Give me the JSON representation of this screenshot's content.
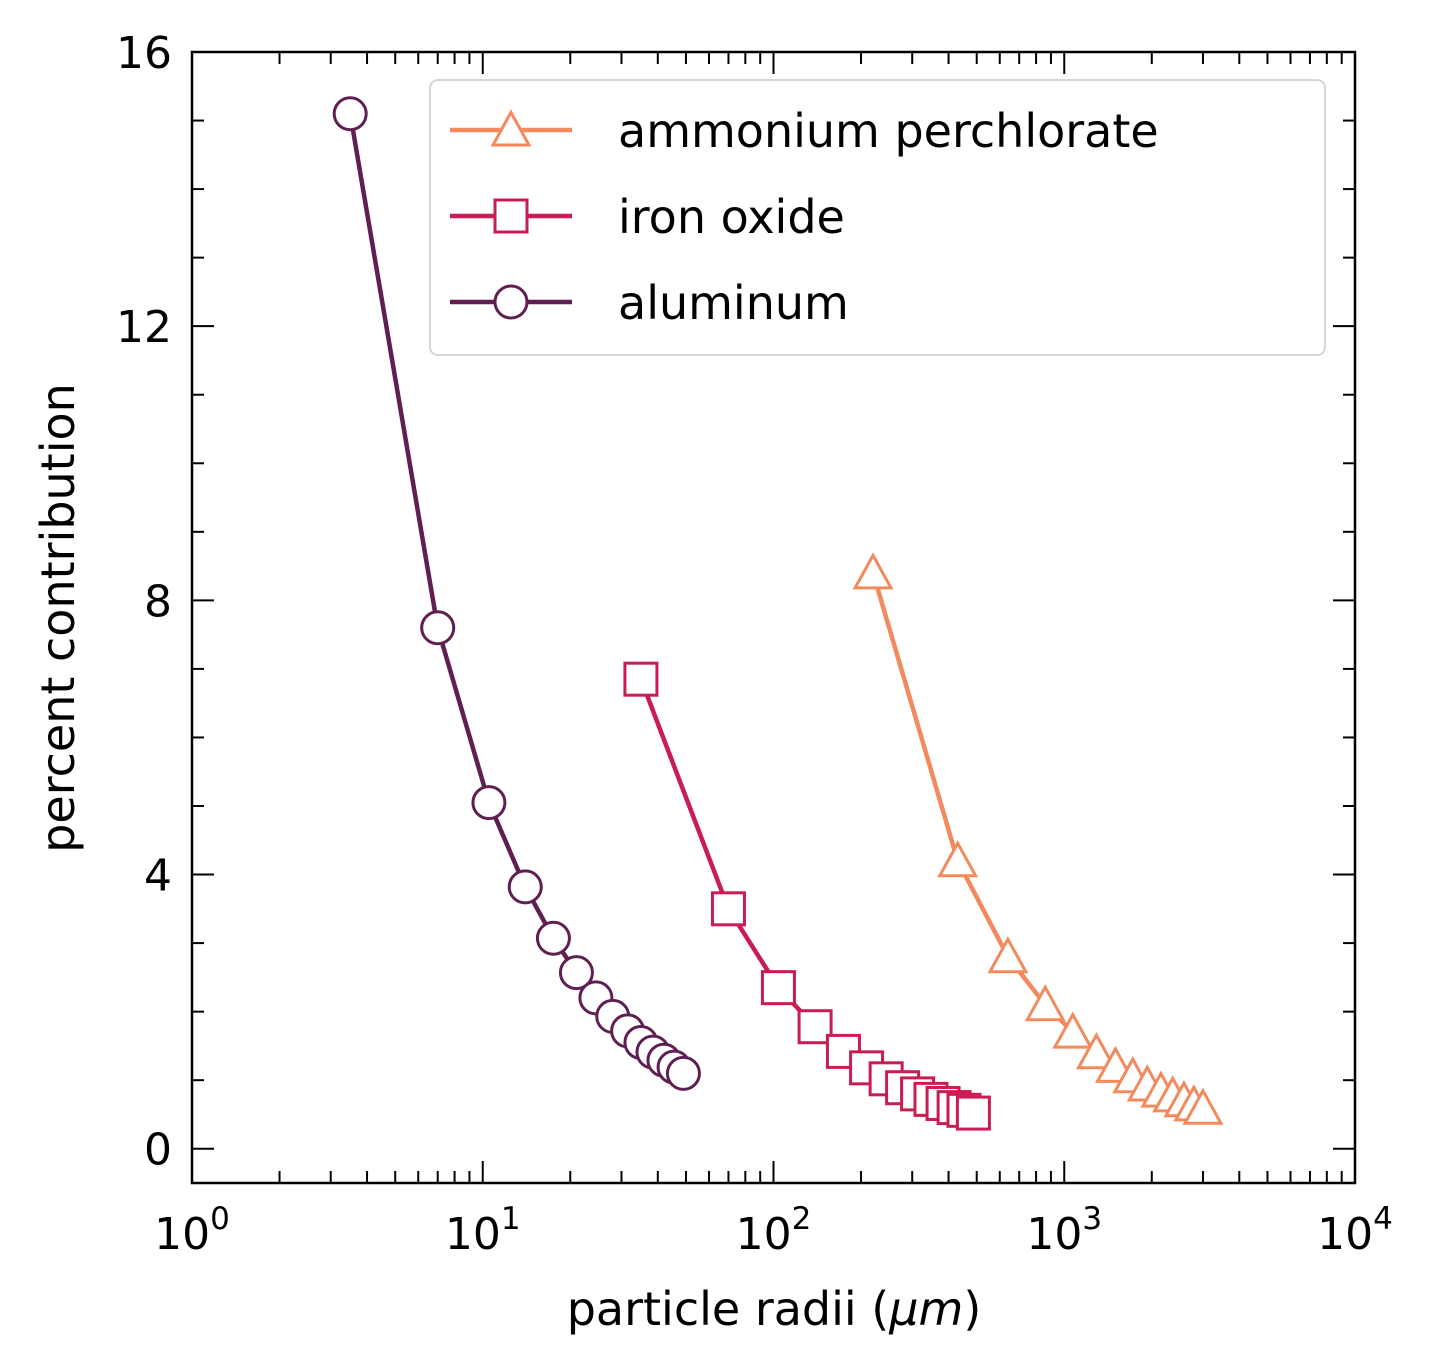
{
  "chart_data": {
    "type": "line",
    "xlabel": "particle radii (",
    "xlabel_unit": "μm",
    "xlabel_close": ")",
    "ylabel": "percent contribution",
    "xscale": "log",
    "xlim": [
      1,
      10000
    ],
    "ylim": [
      -0.5,
      16
    ],
    "x_ticks": [
      1,
      10,
      100,
      1000,
      10000
    ],
    "x_tick_base": "10",
    "x_tick_exponents": [
      "0",
      "1",
      "2",
      "3",
      "4"
    ],
    "y_ticks": [
      0,
      4,
      8,
      12,
      16
    ],
    "y_tick_labels": [
      "0",
      "4",
      "8",
      "12",
      "16"
    ],
    "grid": false,
    "legend_position": "top-right",
    "series": [
      {
        "name": "ammonium perchlorate",
        "color": "#f28a5e",
        "marker": "triangle",
        "x": [
          220,
          430,
          640,
          860,
          1070,
          1290,
          1500,
          1720,
          1930,
          2150,
          2360,
          2580,
          2790,
          3000
        ],
        "y": [
          8.4,
          4.2,
          2.8,
          2.1,
          1.7,
          1.4,
          1.2,
          1.05,
          0.93,
          0.84,
          0.77,
          0.7,
          0.64,
          0.59
        ]
      },
      {
        "name": "iron oxide",
        "color": "#c91d52",
        "marker": "square",
        "x": [
          35,
          70,
          104,
          139,
          174,
          209,
          244,
          278,
          313,
          348,
          383,
          418,
          452,
          487
        ],
        "y": [
          6.85,
          3.5,
          2.35,
          1.78,
          1.42,
          1.18,
          1.02,
          0.89,
          0.8,
          0.72,
          0.66,
          0.6,
          0.56,
          0.52
        ]
      },
      {
        "name": "aluminum",
        "color": "#5f1f52",
        "marker": "circle",
        "x": [
          3.5,
          7,
          10.5,
          14,
          17.5,
          21,
          24.5,
          28,
          31.5,
          35,
          38.5,
          42,
          45.5,
          49
        ],
        "y": [
          15.1,
          7.6,
          5.05,
          3.82,
          3.07,
          2.57,
          2.2,
          1.93,
          1.72,
          1.55,
          1.41,
          1.29,
          1.19,
          1.1
        ]
      }
    ]
  }
}
